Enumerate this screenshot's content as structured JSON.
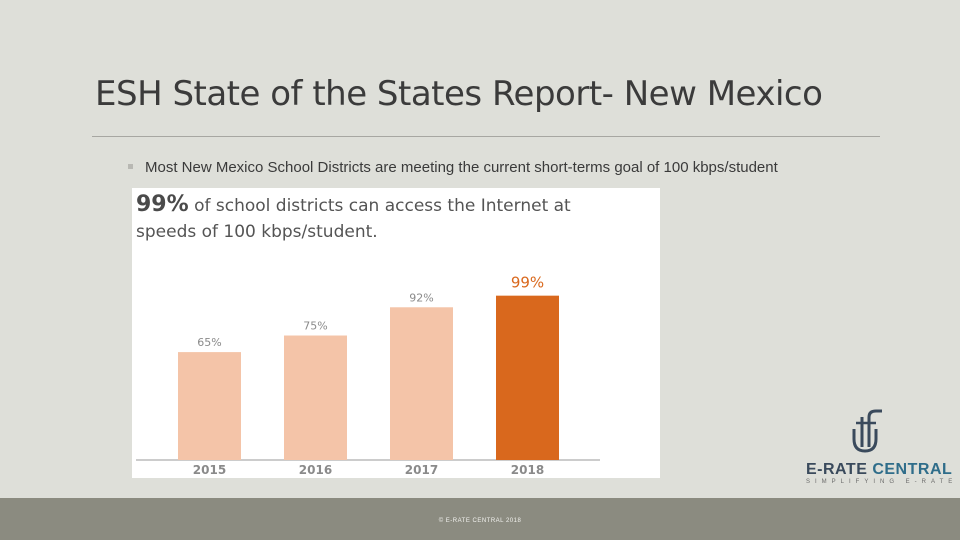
{
  "slide": {
    "title": "ESH State of the States Report- New Mexico",
    "bullet": "Most New Mexico School Districts are meeting the current short-terms goal of 100 kbps/student"
  },
  "headline": {
    "big": "99%",
    "rest_line1": "of school districts can access the Internet at",
    "line2": "speeds of 100 kbps/student."
  },
  "chart_data": {
    "type": "bar",
    "categories": [
      "2015",
      "2016",
      "2017",
      "2018"
    ],
    "values": [
      65,
      75,
      92,
      99
    ],
    "value_labels": [
      "65%",
      "75%",
      "92%",
      "99%"
    ],
    "ylim": [
      0,
      100
    ],
    "colors": [
      "#f4c4a8",
      "#f4c4a8",
      "#f4c4a8",
      "#d9681d"
    ],
    "label_colors": [
      "#8a8a8a",
      "#8a8a8a",
      "#8a8a8a",
      "#d9681d"
    ]
  },
  "logo": {
    "name_part1": "E-RATE",
    "name_part2": "CENTRAL",
    "tagline": "SIMPLIFYING E-RATE",
    "icon": "e-rate-central-logo-icon"
  },
  "footer": {
    "text": "© E-RATE CENTRAL 2018"
  }
}
